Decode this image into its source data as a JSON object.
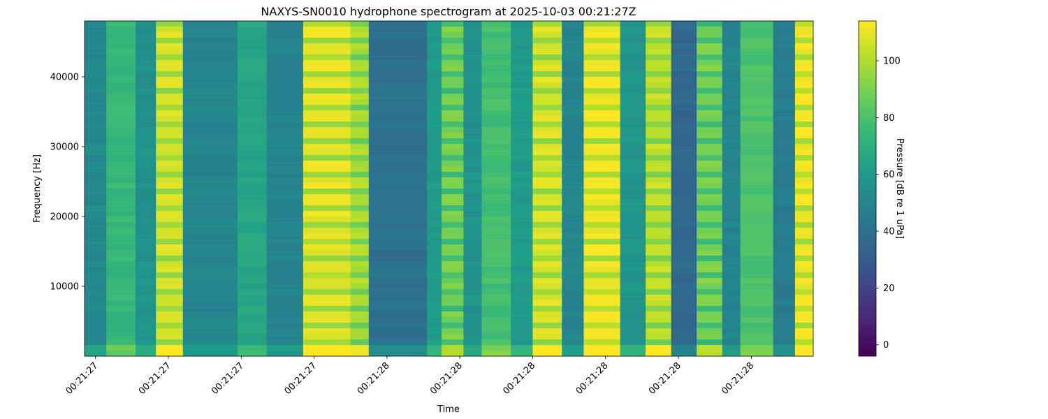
{
  "chart_data": {
    "type": "heatmap",
    "title": "NAXYS-SN0010 hydrophone spectrogram at 2025-10-03 00:21:27Z",
    "xlabel": "Time",
    "ylabel": "Frequency [Hz]",
    "colorbar_label": "Pressure [dB re 1 uPa]",
    "colormap": "viridis",
    "colormap_stops": [
      "#440154",
      "#482878",
      "#3e4989",
      "#31688e",
      "#26828e",
      "#1f9e89",
      "#35b779",
      "#6ece58",
      "#b5de2b",
      "#fde725"
    ],
    "value_range": [
      -4,
      114
    ],
    "colorbar_ticks": [
      0,
      20,
      40,
      60,
      80,
      100
    ],
    "colorbar_tick_labels": [
      "0",
      "20",
      "40",
      "60",
      "80",
      "100"
    ],
    "y_range": [
      0,
      48000
    ],
    "y_ticks": [
      10000,
      20000,
      30000,
      40000
    ],
    "y_tick_labels": [
      "10000",
      "20000",
      "30000",
      "40000"
    ],
    "x_range": [
      0,
      1
    ],
    "x_ticks": [
      0.015,
      0.115,
      0.215,
      0.315,
      0.415,
      0.515,
      0.615,
      0.715,
      0.815,
      0.915
    ],
    "x_tick_labels": [
      "00:21:27",
      "00:21:27",
      "00:21:27",
      "00:21:27",
      "00:21:28",
      "00:21:28",
      "00:21:28",
      "00:21:28",
      "00:21:28",
      "00:21:28"
    ],
    "bands": [
      {
        "t0": 0.0,
        "t1": 0.03,
        "level": 52
      },
      {
        "t0": 0.03,
        "t1": 0.07,
        "level": 74
      },
      {
        "t0": 0.07,
        "t1": 0.098,
        "level": 56
      },
      {
        "t0": 0.098,
        "t1": 0.135,
        "level": 104
      },
      {
        "t0": 0.135,
        "t1": 0.21,
        "level": 50
      },
      {
        "t0": 0.21,
        "t1": 0.25,
        "level": 66
      },
      {
        "t0": 0.25,
        "t1": 0.3,
        "level": 49
      },
      {
        "t0": 0.3,
        "t1": 0.365,
        "level": 106
      },
      {
        "t0": 0.365,
        "t1": 0.39,
        "level": 96
      },
      {
        "t0": 0.39,
        "t1": 0.47,
        "level": 40
      },
      {
        "t0": 0.47,
        "t1": 0.49,
        "level": 60
      },
      {
        "t0": 0.49,
        "t1": 0.52,
        "level": 86
      },
      {
        "t0": 0.52,
        "t1": 0.545,
        "level": 56
      },
      {
        "t0": 0.545,
        "t1": 0.585,
        "level": 78
      },
      {
        "t0": 0.585,
        "t1": 0.615,
        "level": 60
      },
      {
        "t0": 0.615,
        "t1": 0.655,
        "level": 104
      },
      {
        "t0": 0.655,
        "t1": 0.685,
        "level": 50
      },
      {
        "t0": 0.685,
        "t1": 0.735,
        "level": 108
      },
      {
        "t0": 0.735,
        "t1": 0.77,
        "level": 58
      },
      {
        "t0": 0.77,
        "t1": 0.805,
        "level": 100
      },
      {
        "t0": 0.805,
        "t1": 0.84,
        "level": 36
      },
      {
        "t0": 0.84,
        "t1": 0.875,
        "level": 86
      },
      {
        "t0": 0.875,
        "t1": 0.9,
        "level": 50
      },
      {
        "t0": 0.9,
        "t1": 0.945,
        "level": 80
      },
      {
        "t0": 0.945,
        "t1": 0.975,
        "level": 46
      },
      {
        "t0": 0.975,
        "t1": 1.0,
        "level": 108
      }
    ]
  }
}
